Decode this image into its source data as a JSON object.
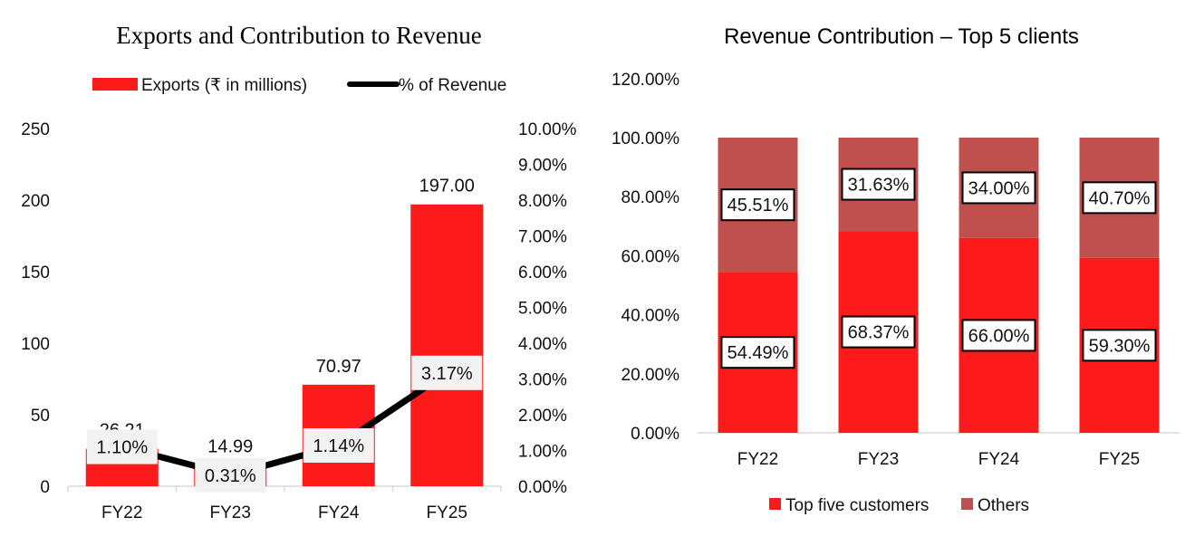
{
  "colors": {
    "exports": "#fc1a1a",
    "line": "#000000",
    "top5": "#fc1a1a",
    "others": "#c0504d",
    "label_bg": "#f2f2f2",
    "axis": "#d9d9d9"
  },
  "chart_data": [
    {
      "type": "bar",
      "title": "Exports and Contribution to Revenue",
      "categories": [
        "FY22",
        "FY23",
        "FY24",
        "FY25"
      ],
      "series": [
        {
          "name": "Exports (₹ in millions)",
          "type": "bar",
          "axis": "primary",
          "values": [
            26.21,
            14.99,
            70.97,
            197.0
          ],
          "labels": [
            "26.21",
            "14.99",
            "70.97",
            "197.00"
          ]
        },
        {
          "name": "% of Revenue",
          "type": "line",
          "axis": "secondary",
          "values": [
            1.1,
            0.31,
            1.14,
            3.17
          ],
          "labels": [
            "1.10%",
            "0.31%",
            "1.14%",
            "3.17%"
          ]
        }
      ],
      "ylim": [
        0,
        250
      ],
      "yticks": [
        "0",
        "50",
        "100",
        "150",
        "200",
        "250"
      ],
      "y2lim": [
        0,
        10
      ],
      "y2ticks": [
        "0.00%",
        "1.00%",
        "2.00%",
        "3.00%",
        "4.00%",
        "5.00%",
        "6.00%",
        "7.00%",
        "8.00%",
        "9.00%",
        "10.00%"
      ],
      "legend": "top"
    },
    {
      "type": "bar",
      "stacked": true,
      "title": "Revenue Contribution – Top 5 clients",
      "categories": [
        "FY22",
        "FY23",
        "FY24",
        "FY25"
      ],
      "series": [
        {
          "name": "Top five customers",
          "values": [
            54.49,
            68.37,
            66.0,
            59.3
          ],
          "labels": [
            "54.49%",
            "68.37%",
            "66.00%",
            "59.30%"
          ]
        },
        {
          "name": "Others",
          "values": [
            45.51,
            31.63,
            34.0,
            40.7
          ],
          "labels": [
            "45.51%",
            "31.63%",
            "34.00%",
            "40.70%"
          ]
        }
      ],
      "ylim": [
        0,
        120
      ],
      "yticks": [
        "0.00%",
        "20.00%",
        "40.00%",
        "60.00%",
        "80.00%",
        "100.00%",
        "120.00%"
      ],
      "legend": "bottom"
    }
  ]
}
